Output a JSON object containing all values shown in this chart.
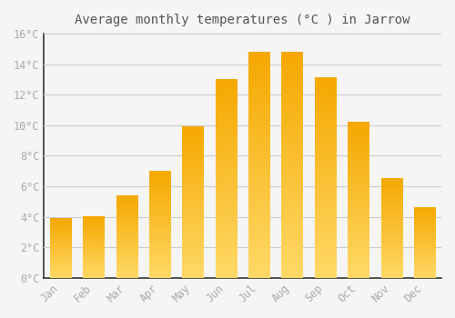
{
  "title": "Average monthly temperatures (°C ) in Jarrow",
  "months": [
    "Jan",
    "Feb",
    "Mar",
    "Apr",
    "May",
    "Jun",
    "Jul",
    "Aug",
    "Sep",
    "Oct",
    "Nov",
    "Dec"
  ],
  "values": [
    3.9,
    4.0,
    5.4,
    7.0,
    9.9,
    13.0,
    14.8,
    14.8,
    13.1,
    10.2,
    6.5,
    4.6
  ],
  "bar_color_dark": "#F5A800",
  "bar_color_light": "#FFD966",
  "background_color": "#F5F5F5",
  "grid_color": "#CCCCCC",
  "ylim": [
    0,
    16
  ],
  "yticks": [
    0,
    2,
    4,
    6,
    8,
    10,
    12,
    14,
    16
  ],
  "title_fontsize": 10,
  "tick_fontsize": 8.5,
  "tick_color": "#AAAAAA",
  "title_color": "#555555"
}
